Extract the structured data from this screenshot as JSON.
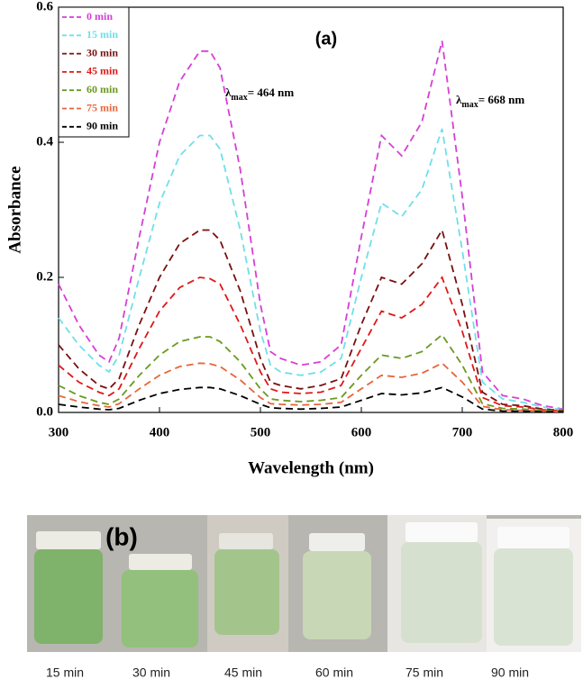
{
  "chart_data": {
    "type": "line",
    "ylabel": "Absorbance",
    "xlabel": "Wavelength (nm)",
    "annotations": [
      {
        "text": "(a)"
      },
      {
        "symbol": "λ",
        "subscript": "max",
        "text": "= 464 nm"
      },
      {
        "symbol": "λ",
        "subscript": "max",
        "text": "= 668 nm"
      }
    ],
    "x": [
      300,
      320,
      340,
      350,
      360,
      380,
      400,
      420,
      440,
      450,
      460,
      480,
      500,
      510,
      520,
      540,
      560,
      580,
      600,
      620,
      640,
      660,
      680,
      700,
      720,
      740,
      760,
      780,
      800
    ],
    "series": [
      {
        "name": "0 min",
        "color": "#d63fd6",
        "values": [
          0.19,
          0.13,
          0.085,
          0.075,
          0.11,
          0.26,
          0.4,
          0.49,
          0.535,
          0.535,
          0.51,
          0.36,
          0.16,
          0.09,
          0.08,
          0.07,
          0.075,
          0.1,
          0.26,
          0.41,
          0.38,
          0.43,
          0.55,
          0.32,
          0.06,
          0.025,
          0.02,
          0.01,
          0.005
        ]
      },
      {
        "name": "15 min",
        "color": "#6fe0e8",
        "values": [
          0.14,
          0.1,
          0.07,
          0.06,
          0.085,
          0.2,
          0.31,
          0.38,
          0.41,
          0.41,
          0.39,
          0.27,
          0.12,
          0.07,
          0.06,
          0.055,
          0.06,
          0.08,
          0.2,
          0.31,
          0.29,
          0.33,
          0.42,
          0.24,
          0.045,
          0.02,
          0.015,
          0.008,
          0.004
        ]
      },
      {
        "name": "30 min",
        "color": "#7a1010",
        "values": [
          0.1,
          0.065,
          0.04,
          0.035,
          0.05,
          0.13,
          0.2,
          0.25,
          0.27,
          0.27,
          0.255,
          0.18,
          0.08,
          0.045,
          0.04,
          0.035,
          0.04,
          0.05,
          0.13,
          0.2,
          0.19,
          0.22,
          0.27,
          0.16,
          0.03,
          0.012,
          0.01,
          0.005,
          0.003
        ]
      },
      {
        "name": "45 min",
        "color": "#e01818",
        "values": [
          0.07,
          0.045,
          0.03,
          0.025,
          0.035,
          0.095,
          0.15,
          0.185,
          0.2,
          0.198,
          0.19,
          0.13,
          0.06,
          0.035,
          0.03,
          0.028,
          0.03,
          0.04,
          0.095,
          0.15,
          0.14,
          0.16,
          0.2,
          0.12,
          0.022,
          0.01,
          0.008,
          0.004,
          0.002
        ]
      },
      {
        "name": "60 min",
        "color": "#6a9a20",
        "values": [
          0.04,
          0.025,
          0.015,
          0.012,
          0.02,
          0.055,
          0.085,
          0.105,
          0.112,
          0.112,
          0.105,
          0.075,
          0.035,
          0.02,
          0.018,
          0.016,
          0.018,
          0.022,
          0.055,
          0.085,
          0.08,
          0.09,
          0.115,
          0.07,
          0.013,
          0.006,
          0.005,
          0.003,
          0.002
        ]
      },
      {
        "name": "75 min",
        "color": "#e8653a",
        "values": [
          0.025,
          0.016,
          0.01,
          0.008,
          0.013,
          0.035,
          0.055,
          0.068,
          0.073,
          0.072,
          0.068,
          0.048,
          0.022,
          0.013,
          0.012,
          0.011,
          0.012,
          0.015,
          0.035,
          0.055,
          0.052,
          0.058,
          0.073,
          0.045,
          0.009,
          0.004,
          0.003,
          0.002,
          0.001
        ]
      },
      {
        "name": "90 min",
        "color": "#000000",
        "values": [
          0.012,
          0.008,
          0.005,
          0.004,
          0.006,
          0.018,
          0.028,
          0.034,
          0.037,
          0.037,
          0.035,
          0.025,
          0.012,
          0.007,
          0.006,
          0.005,
          0.006,
          0.008,
          0.018,
          0.028,
          0.026,
          0.029,
          0.037,
          0.023,
          0.005,
          0.002,
          0.002,
          0.001,
          0.001
        ]
      }
    ],
    "xlim": [
      300,
      800
    ],
    "ylim": [
      0,
      0.6
    ],
    "xticks": [
      300,
      400,
      500,
      600,
      700,
      800
    ],
    "yticks": [
      {
        "value": 0,
        "label": "0.0"
      },
      0.2,
      0.4,
      0.6
    ],
    "legend": "upper left"
  },
  "photo": {
    "label": "(b)",
    "captions": [
      "15 min",
      "30 min",
      "45 min",
      "60 min",
      "75 min",
      "90 min"
    ]
  }
}
